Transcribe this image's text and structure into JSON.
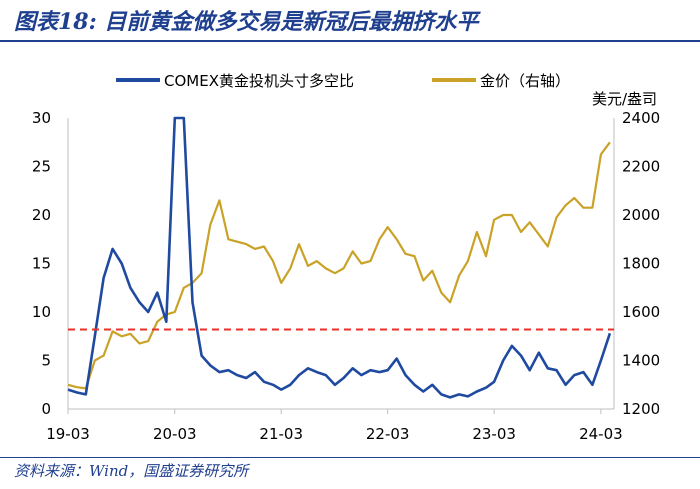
{
  "title": "图表18: 目前黄金做多交易是新冠后最拥挤水平",
  "source": "资料来源：Wind，国盛证券研究所",
  "chart_data": {
    "type": "line",
    "y2label": "美元/盎司",
    "x_ticks": [
      "19-03",
      "20-03",
      "21-03",
      "22-03",
      "23-03",
      "24-03"
    ],
    "ylim": [
      0,
      30
    ],
    "y_ticks": [
      0,
      5,
      10,
      15,
      20,
      25,
      30
    ],
    "y2lim": [
      1200,
      2400
    ],
    "y2_ticks": [
      1200,
      1400,
      1600,
      1800,
      2000,
      2200,
      2400
    ],
    "reference_line": {
      "axis": "left",
      "value": 8.2,
      "color": "#e8312a",
      "style": "dashed"
    },
    "series": [
      {
        "name": "COMEX黄金投机头寸多空比",
        "axis": "left",
        "color": "#1f4aa0",
        "x": [
          "2019-03",
          "2019-04",
          "2019-05",
          "2019-06",
          "2019-07",
          "2019-08",
          "2019-09",
          "2019-10",
          "2019-11",
          "2019-12",
          "2020-01",
          "2020-02",
          "2020-03",
          "2020-04",
          "2020-05",
          "2020-06",
          "2020-07",
          "2020-08",
          "2020-09",
          "2020-10",
          "2020-11",
          "2020-12",
          "2021-01",
          "2021-02",
          "2021-03",
          "2021-04",
          "2021-05",
          "2021-06",
          "2021-07",
          "2021-08",
          "2021-09",
          "2021-10",
          "2021-11",
          "2021-12",
          "2022-01",
          "2022-02",
          "2022-03",
          "2022-04",
          "2022-05",
          "2022-06",
          "2022-07",
          "2022-08",
          "2022-09",
          "2022-10",
          "2022-11",
          "2022-12",
          "2023-01",
          "2023-02",
          "2023-03",
          "2023-04",
          "2023-05",
          "2023-06",
          "2023-07",
          "2023-08",
          "2023-09",
          "2023-10",
          "2023-11",
          "2023-12",
          "2024-01",
          "2024-02",
          "2024-03",
          "2024-04"
        ],
        "values": [
          2.0,
          1.7,
          1.5,
          7.5,
          13.5,
          16.5,
          15.0,
          12.5,
          11.0,
          10.0,
          12.0,
          9.0,
          30.0,
          30.0,
          11.0,
          5.5,
          4.5,
          3.8,
          4.0,
          3.5,
          3.2,
          3.8,
          2.8,
          2.5,
          2.0,
          2.5,
          3.5,
          4.2,
          3.8,
          3.5,
          2.5,
          3.2,
          4.2,
          3.5,
          4.0,
          3.8,
          4.0,
          5.2,
          3.5,
          2.5,
          1.8,
          2.5,
          1.5,
          1.2,
          1.5,
          1.3,
          1.8,
          2.2,
          2.8,
          5.0,
          6.5,
          5.5,
          4.0,
          5.8,
          4.2,
          4.0,
          2.5,
          3.5,
          3.8,
          2.5,
          5.0,
          7.8
        ]
      },
      {
        "name": "金价（右轴）",
        "axis": "right",
        "color": "#c9a227",
        "x": [
          "2019-03",
          "2019-04",
          "2019-05",
          "2019-06",
          "2019-07",
          "2019-08",
          "2019-09",
          "2019-10",
          "2019-11",
          "2019-12",
          "2020-01",
          "2020-02",
          "2020-03",
          "2020-04",
          "2020-05",
          "2020-06",
          "2020-07",
          "2020-08",
          "2020-09",
          "2020-10",
          "2020-11",
          "2020-12",
          "2021-01",
          "2021-02",
          "2021-03",
          "2021-04",
          "2021-05",
          "2021-06",
          "2021-07",
          "2021-08",
          "2021-09",
          "2021-10",
          "2021-11",
          "2021-12",
          "2022-01",
          "2022-02",
          "2022-03",
          "2022-04",
          "2022-05",
          "2022-06",
          "2022-07",
          "2022-08",
          "2022-09",
          "2022-10",
          "2022-11",
          "2022-12",
          "2023-01",
          "2023-02",
          "2023-03",
          "2023-04",
          "2023-05",
          "2023-06",
          "2023-07",
          "2023-08",
          "2023-09",
          "2023-10",
          "2023-11",
          "2023-12",
          "2024-01",
          "2024-02",
          "2024-03",
          "2024-04"
        ],
        "values": [
          1300,
          1290,
          1285,
          1400,
          1420,
          1520,
          1500,
          1510,
          1470,
          1480,
          1560,
          1590,
          1600,
          1700,
          1720,
          1760,
          1960,
          2060,
          1900,
          1890,
          1880,
          1860,
          1870,
          1810,
          1720,
          1780,
          1880,
          1790,
          1810,
          1780,
          1760,
          1780,
          1850,
          1800,
          1810,
          1900,
          1950,
          1900,
          1840,
          1830,
          1730,
          1770,
          1680,
          1640,
          1750,
          1810,
          1930,
          1830,
          1980,
          2000,
          2000,
          1930,
          1970,
          1920,
          1870,
          1990,
          2040,
          2070,
          2030,
          2030,
          2250,
          2300
        ]
      }
    ]
  }
}
